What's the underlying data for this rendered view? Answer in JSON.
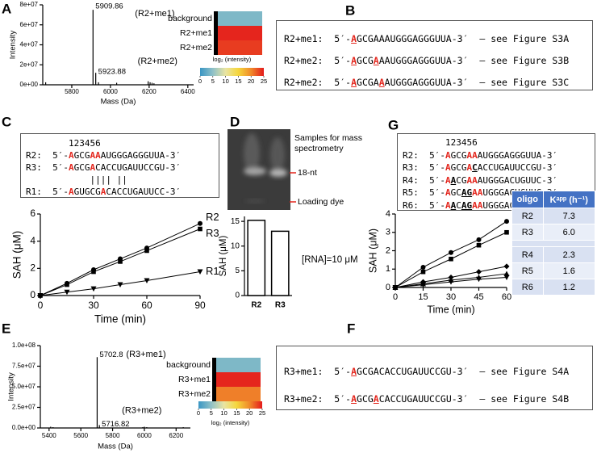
{
  "panel_labels": [
    "A",
    "B",
    "C",
    "D",
    "E",
    "F",
    "G"
  ],
  "chart_data": [
    {
      "type": "stem",
      "xlabel": "Mass (Da)",
      "ylabel": "Intensity",
      "color": "#000000",
      "x": [
        5665,
        5909.86,
        5923.88,
        5938,
        6032,
        6195,
        6205,
        6215,
        6225
      ],
      "values": [
        2500000,
        75000000,
        12000000,
        2500000,
        2000000,
        3500000,
        2500000,
        2000000,
        1500000
      ],
      "xlim": [
        5650,
        6430
      ],
      "xticks": [
        5800,
        6000,
        6200,
        6400
      ],
      "ylim": [
        0,
        80000000
      ],
      "yticks": [
        {
          "value": 0,
          "label": "0e+00"
        },
        {
          "value": 20000000,
          "label": "2e+07"
        },
        {
          "value": 40000000,
          "label": "4e+07"
        },
        {
          "value": 60000000,
          "label": "6e+07"
        },
        {
          "value": 80000000,
          "label": "8e+07"
        }
      ],
      "annotations": [
        {
          "x": 5909.86,
          "y": 75000000,
          "text": "5909.86",
          "label": "(R2+me1)"
        },
        {
          "x": 5923.88,
          "y": 12000000,
          "text": "5923.88",
          "label": "(R2+me2)"
        }
      ],
      "annotation_colors": [
        "#2a3de0",
        "#e3241b"
      ],
      "heatmap": {
        "rows": [
          "background",
          "R2+me1",
          "R2+me2"
        ],
        "values": [
          4,
          24.5,
          23.5
        ],
        "lim": [
          0,
          25
        ],
        "ticks": [
          0,
          5,
          10,
          15,
          20,
          25
        ],
        "label": "log₂ (intensity)",
        "colormap": [
          "#3a96c4",
          "#8fc1c8",
          "#e9e4a2",
          "#f5d63c",
          "#f08a2a",
          "#e41a1c"
        ]
      }
    },
    {
      "type": "line",
      "xlabel": "Time (min)",
      "ylabel": "SAH (μM)",
      "color": "#000000",
      "x": [
        0,
        15,
        30,
        45,
        60,
        90
      ],
      "series": [
        {
          "name": "R2",
          "marker": "circle",
          "values": [
            0,
            0.9,
            1.9,
            2.7,
            3.5,
            5.3
          ]
        },
        {
          "name": "R3",
          "marker": "square",
          "values": [
            0,
            0.8,
            1.75,
            2.5,
            3.3,
            4.9
          ]
        },
        {
          "name": "R1",
          "marker": "triangle-down",
          "values": [
            0,
            0.25,
            0.5,
            0.8,
            1.1,
            1.75
          ]
        }
      ],
      "xlim": [
        0,
        90
      ],
      "xticks": [
        0,
        30,
        60,
        90
      ],
      "ylim": [
        0,
        6
      ],
      "yticks": [
        0,
        2,
        4,
        6
      ]
    },
    {
      "type": "bar",
      "ylabel": "SAH (μM)",
      "color": "#ffffff",
      "categories": [
        "R2",
        "R3"
      ],
      "values": [
        15.2,
        13.0
      ],
      "ylim": [
        0,
        16
      ],
      "yticks": [
        0,
        5,
        10,
        15
      ],
      "annotation": "[RNA]=10 μM"
    },
    {
      "type": "stem",
      "xlabel": "Mass (Da)",
      "ylabel": "Intensity",
      "color": "#000000",
      "x": [
        5410,
        5425,
        5702.8,
        5716.82,
        5990,
        6000,
        6015,
        6245
      ],
      "values": [
        1500000,
        1000000,
        86000000,
        3500000,
        1000000,
        1500000,
        1000000,
        1000000
      ],
      "xlim": [
        5345,
        6290
      ],
      "xticks": [
        5400,
        5600,
        5800,
        6000,
        6200
      ],
      "ylim": [
        0,
        100000000
      ],
      "yticks": [
        {
          "value": 0,
          "label": "0.0e+00"
        },
        {
          "value": 25000000,
          "label": "2.5e+07"
        },
        {
          "value": 50000000,
          "label": "5.0e+07"
        },
        {
          "value": 75000000,
          "label": "7.5e+07"
        },
        {
          "value": 100000000,
          "label": "1.0e+08"
        }
      ],
      "annotations": [
        {
          "x": 5702.8,
          "y": 86000000,
          "text": "5702.8",
          "label": "(R3+me1)"
        },
        {
          "x": 5716.82,
          "y": 3500000,
          "text": "5716.82",
          "label": "(R3+me2)"
        }
      ],
      "annotation_colors": [
        "#2a3de0",
        "#e3241b"
      ],
      "heatmap": {
        "rows": [
          "background",
          "R3+me1",
          "R3+me2"
        ],
        "values": [
          4,
          24.5,
          20.5
        ],
        "lim": [
          0,
          25
        ],
        "ticks": [
          0,
          5,
          10,
          15,
          20,
          25
        ],
        "label": "log₂ (intensity)",
        "colormap": [
          "#3a96c4",
          "#8fc1c8",
          "#e9e4a2",
          "#f5d63c",
          "#f08a2a",
          "#e41a1c"
        ]
      }
    },
    {
      "type": "line",
      "xlabel": "Time (min)",
      "ylabel": "SAH (μM)",
      "color": "#000000",
      "x": [
        0,
        15,
        30,
        45,
        60
      ],
      "series": [
        {
          "marker": "circle",
          "values": [
            0,
            1.1,
            1.9,
            2.6,
            3.6
          ]
        },
        {
          "marker": "square",
          "values": [
            0,
            0.85,
            1.55,
            2.3,
            3.0
          ]
        },
        {
          "marker": "diamond",
          "values": [
            0,
            0.3,
            0.55,
            0.85,
            1.15
          ]
        },
        {
          "marker": "triangle-up",
          "values": [
            0,
            0.2,
            0.4,
            0.55,
            0.75
          ]
        },
        {
          "marker": "triangle-down",
          "values": [
            0,
            0.15,
            0.3,
            0.45,
            0.55
          ]
        }
      ],
      "xlim": [
        0,
        60
      ],
      "xticks": [
        0,
        15,
        30,
        45,
        60
      ],
      "ylim": [
        0,
        4
      ],
      "yticks": [
        0,
        1,
        2,
        3,
        4
      ]
    }
  ],
  "panel_b": {
    "lines": [
      {
        "name": "R2+me1:",
        "sequence": [
          "5′-",
          {
            "text": "A",
            "color": "#e3241b",
            "underline": true
          },
          "GCGAAAUGGGAGGGUUA-3′"
        ],
        "reference": "– see Figure S3A"
      },
      {
        "name": "R2+me2:",
        "sequence": [
          "5′-",
          {
            "text": "A",
            "color": "#e3241b",
            "underline": true
          },
          "GCG",
          {
            "text": "A",
            "color": "#e3241b",
            "underline": true
          },
          "AAUGGGAGGGUUA-3′"
        ],
        "reference": "– see Figure S3B"
      },
      {
        "name": "R2+me2:",
        "sequence": [
          "5′-",
          {
            "text": "A",
            "color": "#e3241b",
            "underline": true
          },
          "GCGA",
          {
            "text": "A",
            "color": "#e3241b",
            "underline": true
          },
          "AUGGGAGGGUUA-3′"
        ],
        "reference": "– see Figure S3C"
      }
    ]
  },
  "panel_c_sequences": {
    "positions": "123456",
    "lines": [
      {
        "name": "R2:",
        "sequence": [
          "5′-",
          {
            "text": "A",
            "color": "#e3241b"
          },
          "GCG",
          {
            "text": "AA",
            "color": "#e3241b"
          },
          "AUGGGAGGGUUA-3′"
        ]
      },
      {
        "name": "R3:",
        "sequence": [
          "5′-",
          {
            "text": "A",
            "color": "#e3241b"
          },
          "GCG",
          {
            "text": "A",
            "color": "#e3241b"
          },
          "CACCUGAUUCCGU-3′"
        ]
      },
      {
        "sequence": [
          "       |||| ||"
        ]
      },
      {
        "name": "R1:",
        "sequence": [
          "5′-",
          {
            "text": "A",
            "color": "#e3241b"
          },
          "GUGCG",
          {
            "text": "A",
            "color": "#e3241b"
          },
          "CACCUGAUUCC-3′"
        ]
      }
    ]
  },
  "panel_d_gel": {
    "labels": [
      "Samples for mass spectrometry",
      "18-nt",
      "Loading dye"
    ]
  },
  "panel_f": {
    "lines": [
      {
        "name": "R3+me1:",
        "sequence": [
          "5′-",
          {
            "text": "A",
            "color": "#e3241b",
            "underline": true
          },
          "GCGACACCUGAUUCCGU-3′"
        ],
        "reference": "– see Figure S4A"
      },
      {
        "name": "R3+me2:",
        "sequence": [
          "5′-",
          {
            "text": "A",
            "color": "#e3241b",
            "underline": true
          },
          "GCG",
          {
            "text": "A",
            "color": "#e3241b",
            "underline": true
          },
          "CACCUGAUUCCGU-3′"
        ],
        "reference": "– see Figure S4B"
      }
    ]
  },
  "panel_g_sequences": {
    "positions": "123456",
    "lines": [
      {
        "name": "R2:",
        "sequence": [
          "5′-",
          {
            "text": "A",
            "color": "#e3241b"
          },
          "GCG",
          {
            "text": "AA",
            "color": "#e3241b"
          },
          "AUGGGAGGGUUA-3′"
        ]
      },
      {
        "name": "R3:",
        "sequence": [
          "5′-",
          {
            "text": "A",
            "color": "#e3241b"
          },
          "GCG",
          {
            "text": "A",
            "color": "#e3241b"
          },
          {
            "text": "C",
            "color": "#000000",
            "underline": true
          },
          "ACCUGAUUCCGU-3′"
        ]
      },
      {
        "name": "R4:",
        "sequence": [
          "5′-",
          {
            "text": "A",
            "color": "#e3241b"
          },
          {
            "text": "A",
            "color": "#000000",
            "underline": true
          },
          "CG",
          {
            "text": "AA",
            "color": "#e3241b"
          },
          "AUGGGACUGUUC-3′"
        ]
      },
      {
        "name": "R5:",
        "sequence": [
          "5′-",
          {
            "text": "A",
            "color": "#e3241b"
          },
          "GC",
          {
            "text": "AG",
            "color": "#000000",
            "underline": true
          },
          {
            "text": "AA",
            "color": "#e3241b"
          },
          "UGGGACUGUUC-3′"
        ]
      },
      {
        "name": "R6:",
        "sequence": [
          "5′-",
          {
            "text": "A",
            "color": "#e3241b"
          },
          {
            "text": "A",
            "color": "#000000",
            "underline": true
          },
          "C",
          {
            "text": "AG",
            "color": "#000000",
            "underline": true
          },
          {
            "text": "AA",
            "color": "#e3241b"
          },
          "UGGGACUGUUC-3′"
        ]
      }
    ]
  },
  "panel_g_table": {
    "header": [
      "oligo",
      "Kᵃᵖᵖ (h⁻¹)"
    ],
    "rows": [
      [
        "R2",
        "7.3"
      ],
      [
        "R3",
        "6.0"
      ],
      [
        "R4",
        "2.3"
      ],
      [
        "R5",
        "1.6"
      ],
      [
        "R6",
        "1.2"
      ]
    ]
  }
}
